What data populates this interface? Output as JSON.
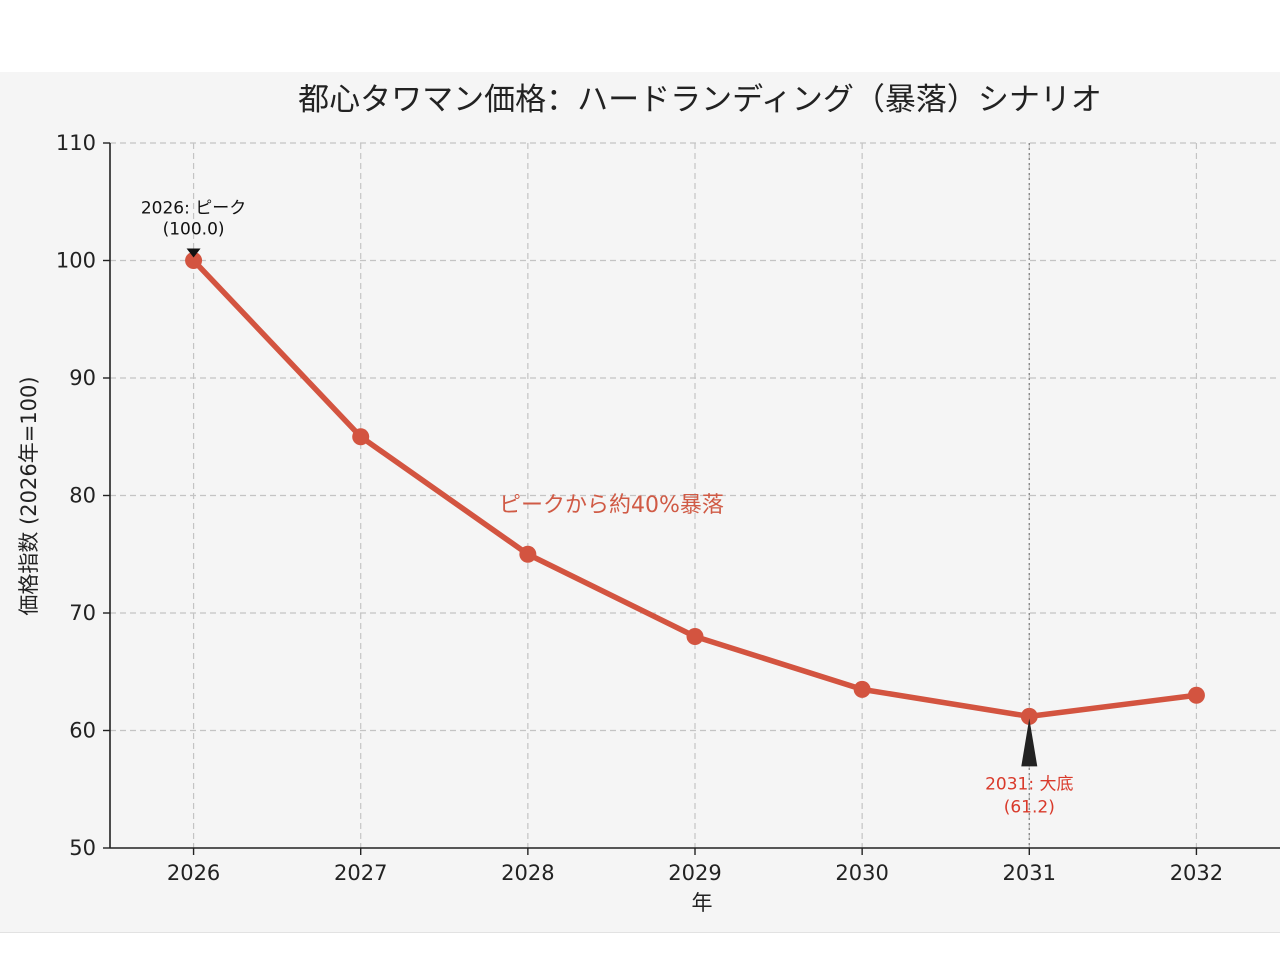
{
  "chart_data": {
    "type": "line",
    "title": "都心タワマン価格：ハードランディング（暴落）シナリオ",
    "xlabel": "年",
    "ylabel": "価格指数 (2026年=100)",
    "x": [
      2026,
      2027,
      2028,
      2029,
      2030,
      2031,
      2032
    ],
    "series": [
      {
        "values": [
          100.0,
          85.0,
          75.0,
          68.0,
          63.5,
          61.2,
          63.0
        ],
        "color": "#d35440"
      }
    ],
    "xlim": [
      2025.5,
      2032.5
    ],
    "ylim": [
      50,
      110
    ],
    "yticks": [
      50,
      60,
      70,
      80,
      90,
      100,
      110
    ],
    "grid": true,
    "annotations": {
      "peak": {
        "line1": "2026: ピーク",
        "line2": "(100.0)",
        "x": 2026,
        "y": 100.0
      },
      "bottom": {
        "line1": "2031: 大底",
        "line2": "(61.2)",
        "x": 2031,
        "y": 61.2
      },
      "drop": {
        "text": "ピークから約40%暴落",
        "x": 2028.5,
        "y": 78.6
      }
    }
  }
}
